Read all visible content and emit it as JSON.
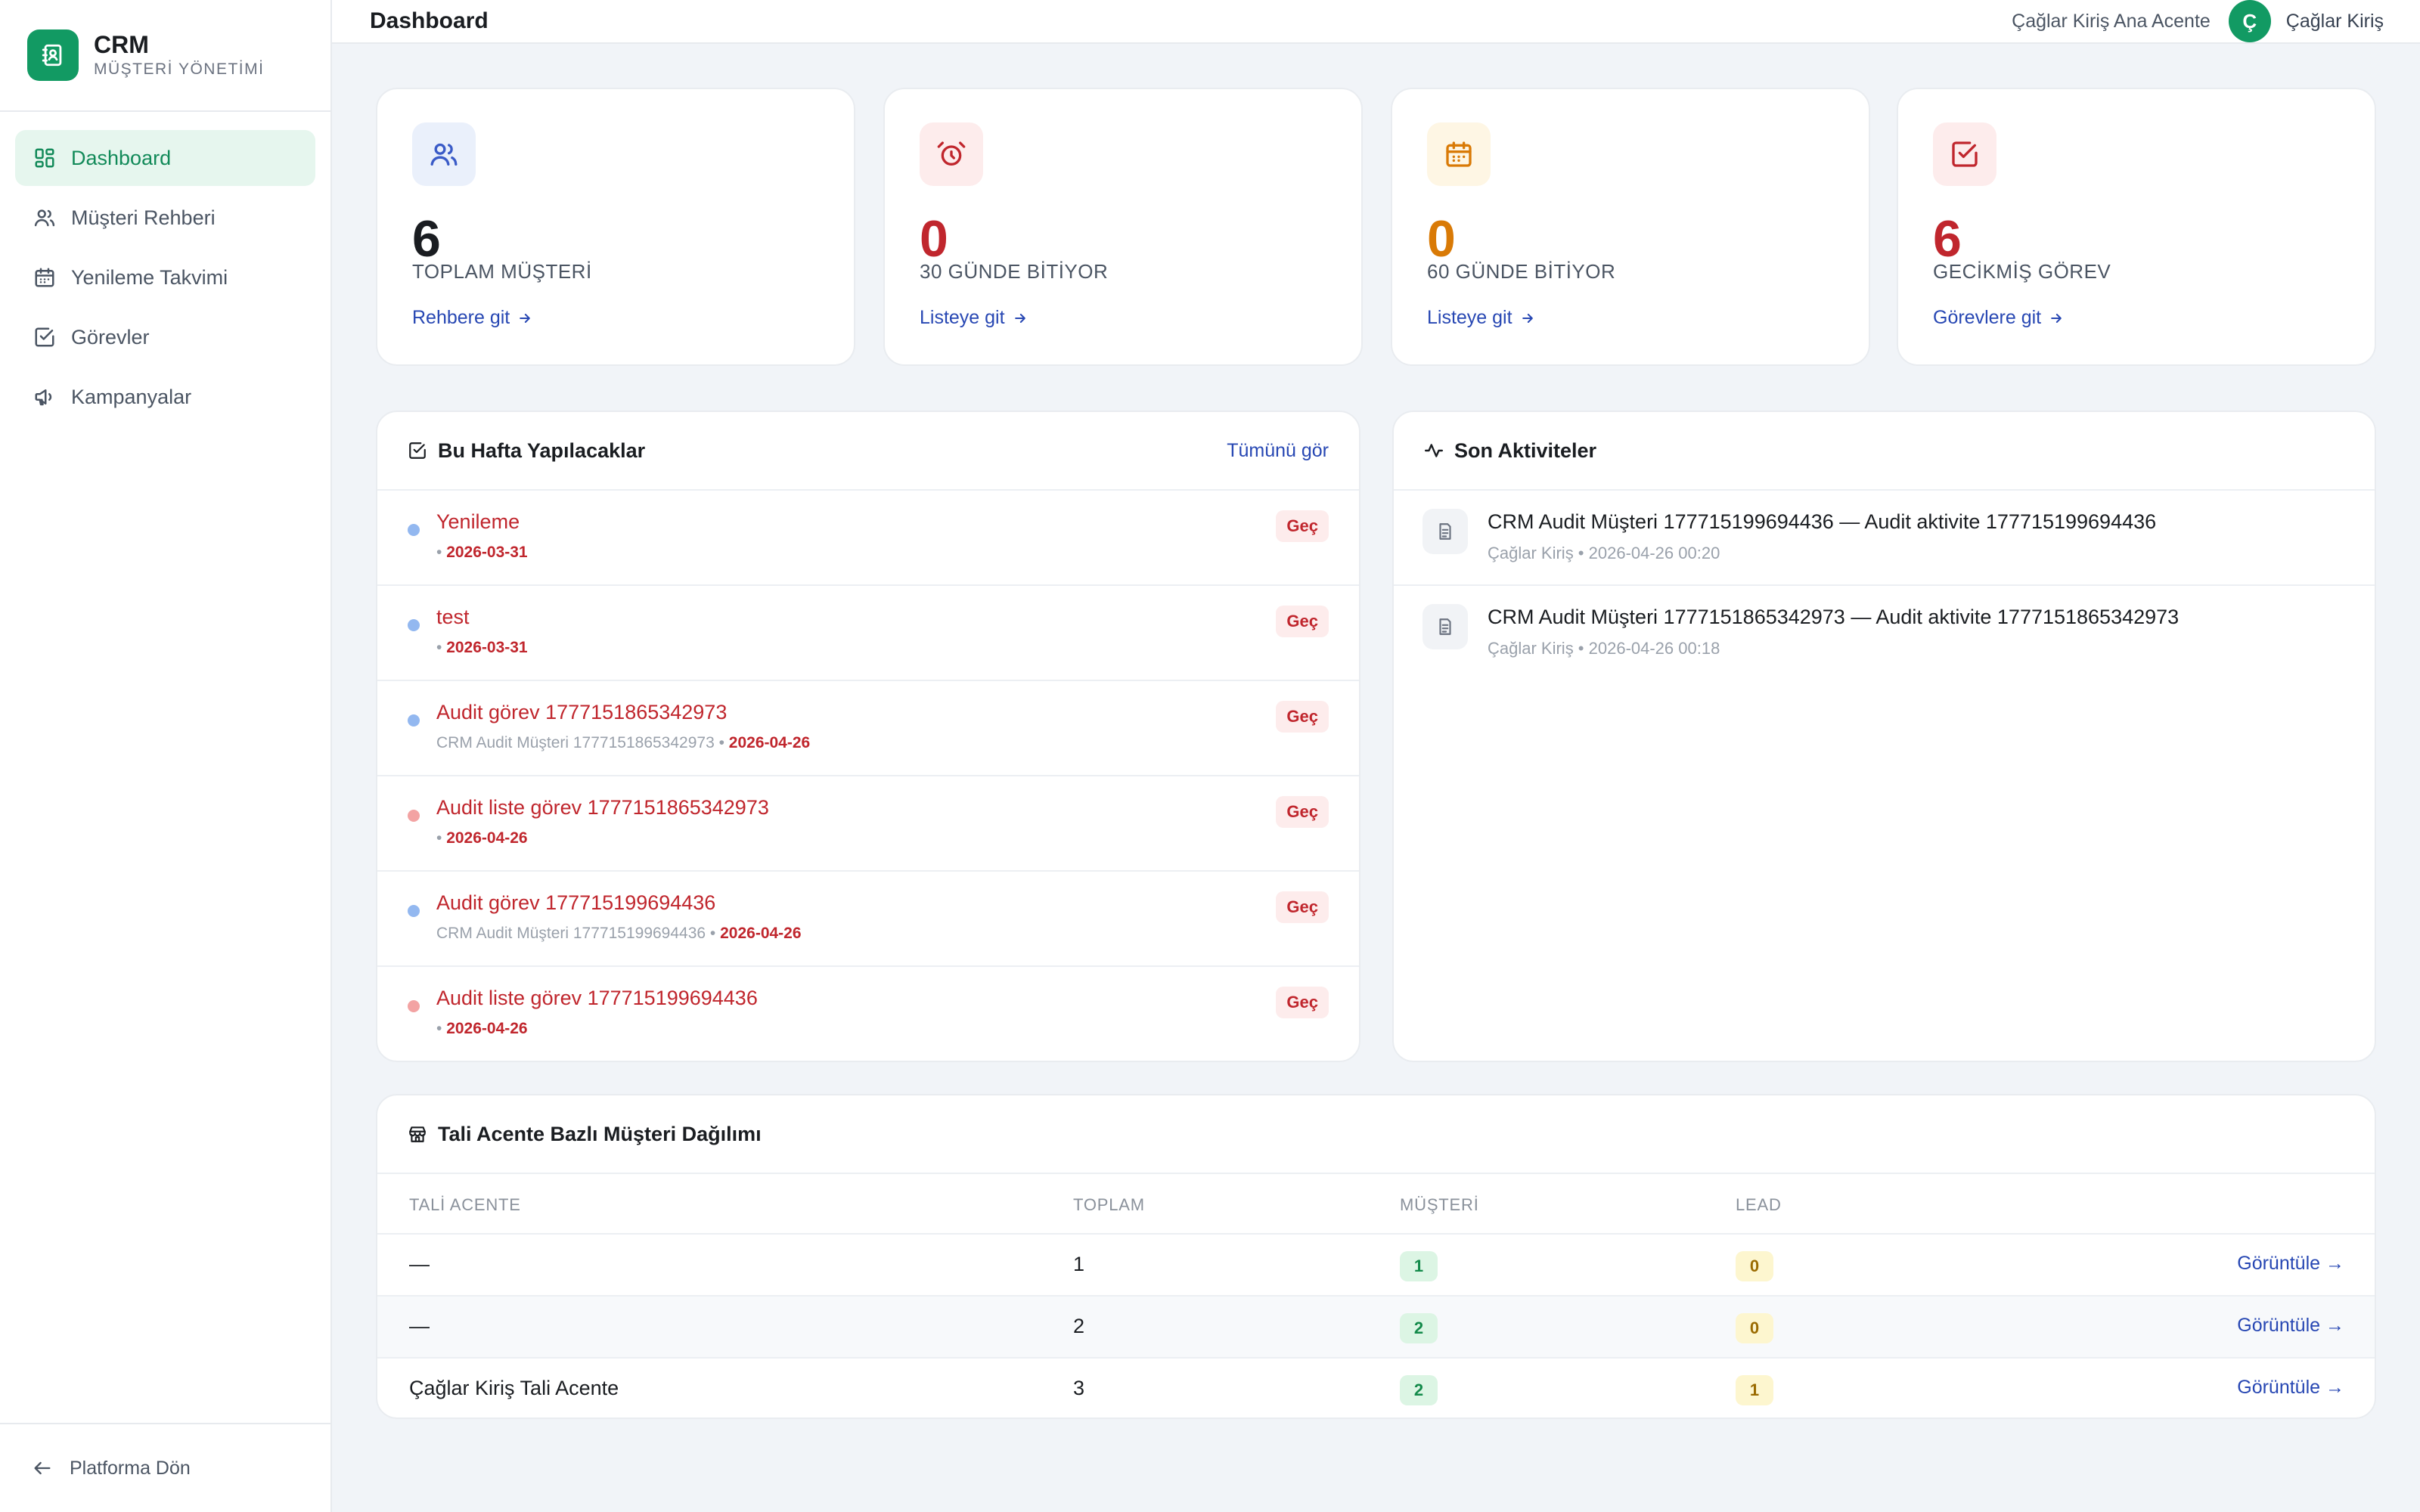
{
  "brand": {
    "name": "CRM",
    "subtitle": "MÜŞTERİ YÖNETİMİ"
  },
  "sidebar": {
    "items": [
      {
        "label": "Dashboard",
        "icon": "dashboard-icon",
        "active": true
      },
      {
        "label": "Müşteri Rehberi",
        "icon": "users-icon"
      },
      {
        "label": "Yenileme Takvimi",
        "icon": "calendar-icon"
      },
      {
        "label": "Görevler",
        "icon": "checkbox-icon"
      },
      {
        "label": "Kampanyalar",
        "icon": "megaphone-icon"
      }
    ],
    "back_label": "Platforma Dön"
  },
  "header": {
    "title": "Dashboard",
    "agency": "Çağlar Kiriş Ana Acente",
    "avatar_letter": "Ç",
    "user": "Çağlar Kiriş"
  },
  "stats": [
    {
      "value": "6",
      "label": "TOPLAM MÜŞTERİ",
      "link": "Rehbere git",
      "color": "#1a1d21",
      "icon": "users-icon"
    },
    {
      "value": "0",
      "label": "30 GÜNDE BİTİYOR",
      "link": "Listeye git",
      "color": "#c0262d",
      "icon": "alarm-clock-icon"
    },
    {
      "value": "0",
      "label": "60 GÜNDE BİTİYOR",
      "link": "Listeye git",
      "color": "#d97a06",
      "icon": "calendar-icon"
    },
    {
      "value": "6",
      "label": "GECİKMİŞ GÖREV",
      "link": "Görevlere git",
      "color": "#c0262d",
      "icon": "checkbox-icon"
    }
  ],
  "tasks": {
    "title": "Bu Hafta Yapılacaklar",
    "see_all": "Tümünü gör",
    "items": [
      {
        "title": "Yenileme",
        "customer": "",
        "date": "2026-03-31",
        "badge": "Geç",
        "dot": "#93b8f0"
      },
      {
        "title": "test",
        "customer": "",
        "date": "2026-03-31",
        "badge": "Geç",
        "dot": "#93b8f0"
      },
      {
        "title": "Audit görev 1777151865342973",
        "customer": "CRM Audit Müşteri 1777151865342973",
        "date": "2026-04-26",
        "badge": "Geç",
        "dot": "#93b8f0"
      },
      {
        "title": "Audit liste görev 1777151865342973",
        "customer": "",
        "date": "2026-04-26",
        "badge": "Geç",
        "dot": "#f3a3a3"
      },
      {
        "title": "Audit görev 177715199694436",
        "customer": "CRM Audit Müşteri 177715199694436",
        "date": "2026-04-26",
        "badge": "Geç",
        "dot": "#93b8f0"
      },
      {
        "title": "Audit liste görev 177715199694436",
        "customer": "",
        "date": "2026-04-26",
        "badge": "Geç",
        "dot": "#f3a3a3"
      }
    ]
  },
  "activities": {
    "title": "Son Aktiviteler",
    "items": [
      {
        "title": "CRM Audit Müşteri 177715199694436 — Audit aktivite 177715199694436",
        "meta": "Çağlar Kiriş • 2026-04-26 00:20"
      },
      {
        "title": "CRM Audit Müşteri 1777151865342973 — Audit aktivite 1777151865342973",
        "meta": "Çağlar Kiriş • 2026-04-26 00:18"
      }
    ]
  },
  "distribution": {
    "title": "Tali Acente Bazlı Müşteri Dağılımı",
    "columns": [
      "TALİ ACENTE",
      "TOPLAM",
      "MÜŞTERİ",
      "LEAD"
    ],
    "view_label": "Görüntüle →",
    "rows": [
      {
        "agency": "—",
        "total": "1",
        "customers": "1",
        "leads": "0"
      },
      {
        "agency": "—",
        "total": "2",
        "customers": "2",
        "leads": "0"
      },
      {
        "agency": "Çağlar Kiriş Tali Acente",
        "total": "3",
        "customers": "2",
        "leads": "1"
      }
    ]
  }
}
